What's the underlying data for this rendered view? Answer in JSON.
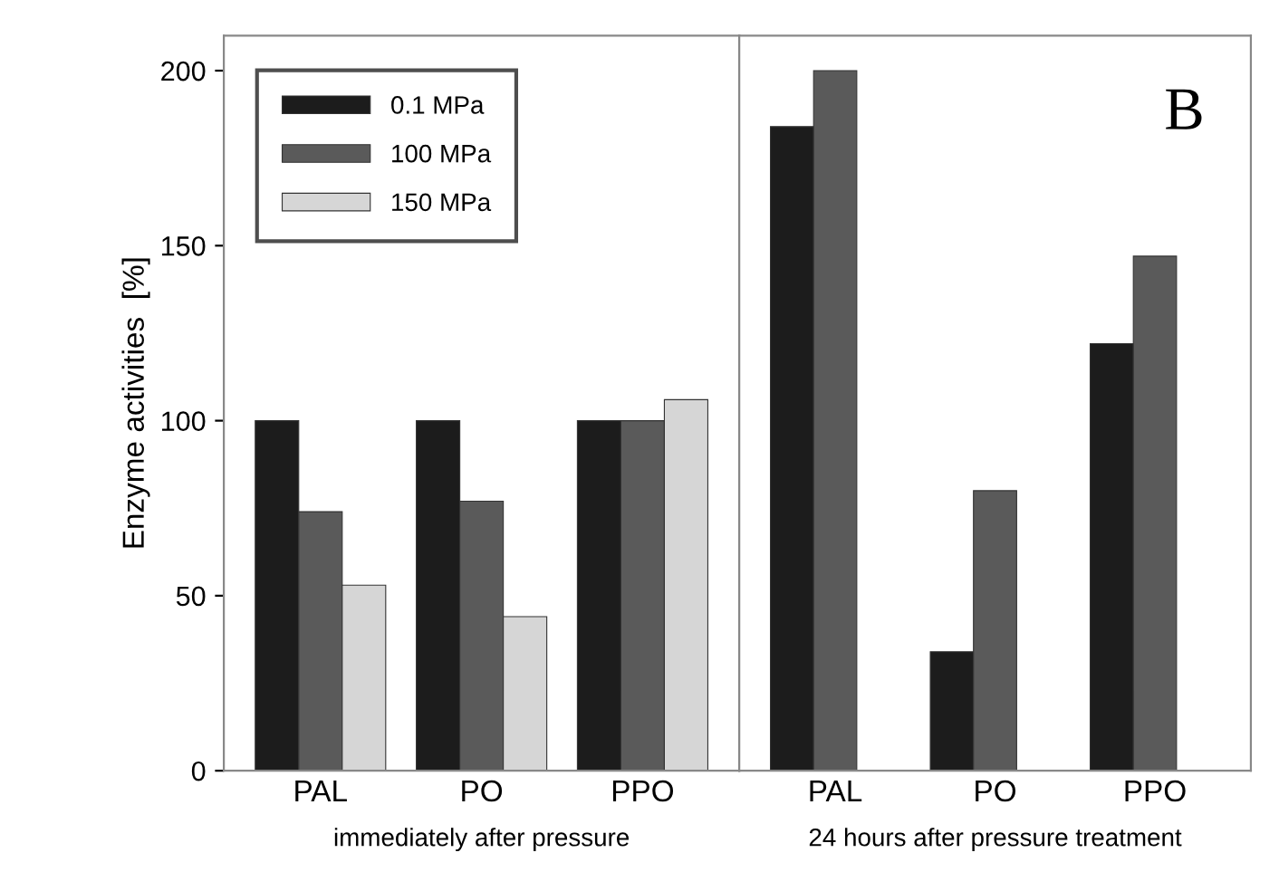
{
  "chart_data": [
    {
      "type": "bar",
      "categories": [
        "PAL",
        "PO",
        "PPO"
      ],
      "xlabel": "immediately after pressure",
      "ylabel": "Enzyme activities  [%]",
      "ylim": [
        0,
        210
      ],
      "yticks": [
        0,
        50,
        100,
        150,
        200
      ],
      "grid": false,
      "legend": "top left",
      "series": [
        {
          "name": "0.1 MPa",
          "color": "#1c1c1c",
          "values": [
            100,
            100,
            100
          ]
        },
        {
          "name": "100 MPa",
          "color": "#5a5a5a",
          "values": [
            74,
            77,
            100
          ]
        },
        {
          "name": "150 MPa",
          "color": "#d6d6d6",
          "values": [
            53,
            44,
            106
          ]
        }
      ]
    },
    {
      "type": "bar",
      "title": "B",
      "categories": [
        "PAL",
        "PO",
        "PPO"
      ],
      "xlabel": "24 hours after pressure treatment",
      "ylim": [
        0,
        210
      ],
      "tick_labels": "x",
      "grid": false,
      "series": [
        {
          "color": "#1c1c1c",
          "values": [
            184,
            34,
            122
          ]
        },
        {
          "color": "#5a5a5a",
          "values": [
            200,
            80,
            147
          ]
        }
      ]
    }
  ]
}
